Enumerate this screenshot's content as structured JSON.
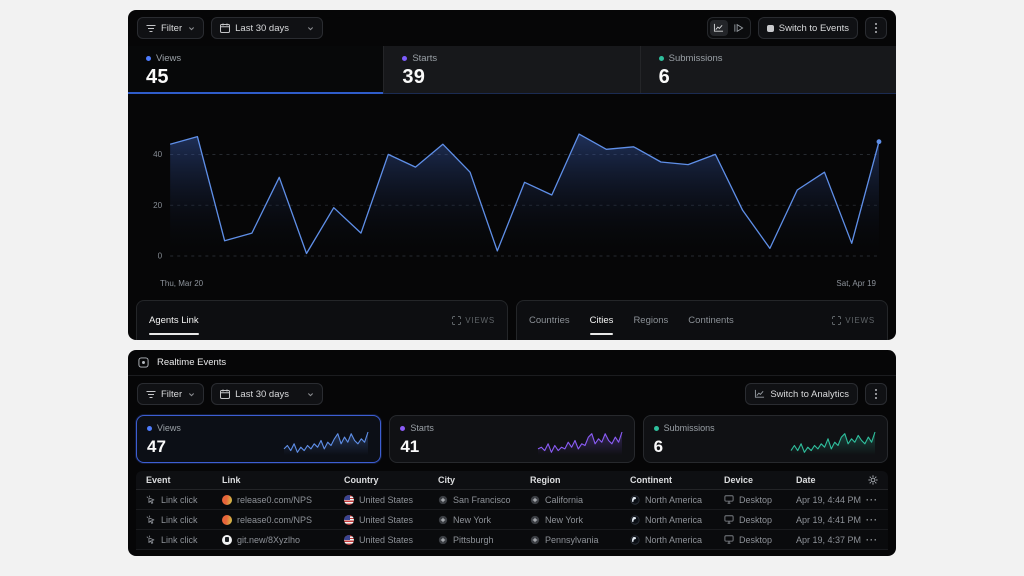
{
  "analytics": {
    "toolbar": {
      "filter_label": "Filter",
      "date_range": "Last 30 days",
      "switch_button": "Switch to Events"
    },
    "stats": [
      {
        "label": "Views",
        "value": "45",
        "color": "#4d7cfe"
      },
      {
        "label": "Starts",
        "value": "39",
        "color": "#7c5cfc"
      },
      {
        "label": "Submissions",
        "value": "6",
        "color": "#2fbf9d"
      }
    ],
    "links_card": {
      "tab": "Agents Link",
      "views_label": "VIEWS"
    },
    "geo_card": {
      "tabs": [
        "Countries",
        "Cities",
        "Regions",
        "Continents"
      ],
      "active_tab": "Cities",
      "views_label": "VIEWS"
    }
  },
  "events": {
    "title": "Realtime Events",
    "toolbar": {
      "filter_label": "Filter",
      "date_range": "Last 30 days",
      "switch_button": "Switch to Analytics"
    },
    "stats": [
      {
        "label": "Views",
        "value": "47",
        "color": "#4d7cfe"
      },
      {
        "label": "Starts",
        "value": "41",
        "color": "#8b5cf6"
      },
      {
        "label": "Submissions",
        "value": "6",
        "color": "#2fbf9d"
      }
    ],
    "table": {
      "columns": [
        "Event",
        "Link",
        "Country",
        "City",
        "Region",
        "Continent",
        "Device",
        "Date"
      ],
      "rows": [
        {
          "event": "Link click",
          "link": "release0.com/NPS",
          "link_icon": "orange",
          "country": "United States",
          "city": "San Francisco",
          "region": "California",
          "continent": "North America",
          "device": "Desktop",
          "date": "Apr 19, 4:44 PM"
        },
        {
          "event": "Link click",
          "link": "release0.com/NPS",
          "link_icon": "orange",
          "country": "United States",
          "city": "New York",
          "region": "New York",
          "continent": "North America",
          "device": "Desktop",
          "date": "Apr 19, 4:41 PM"
        },
        {
          "event": "Link click",
          "link": "git.new/8Xyzlho",
          "link_icon": "git",
          "country": "United States",
          "city": "Pittsburgh",
          "region": "Pennsylvania",
          "continent": "North America",
          "device": "Desktop",
          "date": "Apr 19, 4:37 PM"
        }
      ]
    }
  },
  "chart_data": [
    {
      "type": "area",
      "title": "Views over last 30 days",
      "x_start_label": "Thu, Mar 20",
      "x_end_label": "Sat, Apr 19",
      "values": [
        44,
        47,
        6,
        9,
        31,
        1,
        19,
        9,
        40,
        35,
        44,
        33,
        2,
        29,
        24,
        48,
        42,
        43,
        37,
        36,
        40,
        18,
        3,
        26,
        33,
        5,
        45
      ],
      "ylim": [
        0,
        50
      ],
      "yticks": [
        0,
        20,
        40
      ],
      "grid": "dashed",
      "line_color": "#5f8fe8"
    },
    {
      "type": "sparkline",
      "series": "Views",
      "color": "#5f8fe8",
      "values": [
        3,
        5,
        2,
        6,
        1,
        4,
        2,
        5,
        3,
        6,
        4,
        8,
        3,
        7,
        5,
        9,
        12,
        6,
        10,
        7,
        12,
        8,
        6,
        9,
        7,
        13
      ]
    },
    {
      "type": "sparkline",
      "series": "Starts",
      "color": "#8b5cf6",
      "values": [
        3,
        4,
        2,
        6,
        1,
        5,
        2,
        4,
        3,
        7,
        4,
        8,
        3,
        6,
        5,
        10,
        12,
        6,
        9,
        7,
        12,
        8,
        6,
        10,
        7,
        13
      ]
    },
    {
      "type": "sparkline",
      "series": "Submissions",
      "color": "#2fbf9d",
      "values": [
        2,
        5,
        2,
        6,
        1,
        4,
        2,
        5,
        3,
        6,
        4,
        9,
        3,
        7,
        5,
        10,
        12,
        6,
        9,
        7,
        11,
        8,
        6,
        10,
        7,
        13
      ]
    }
  ]
}
